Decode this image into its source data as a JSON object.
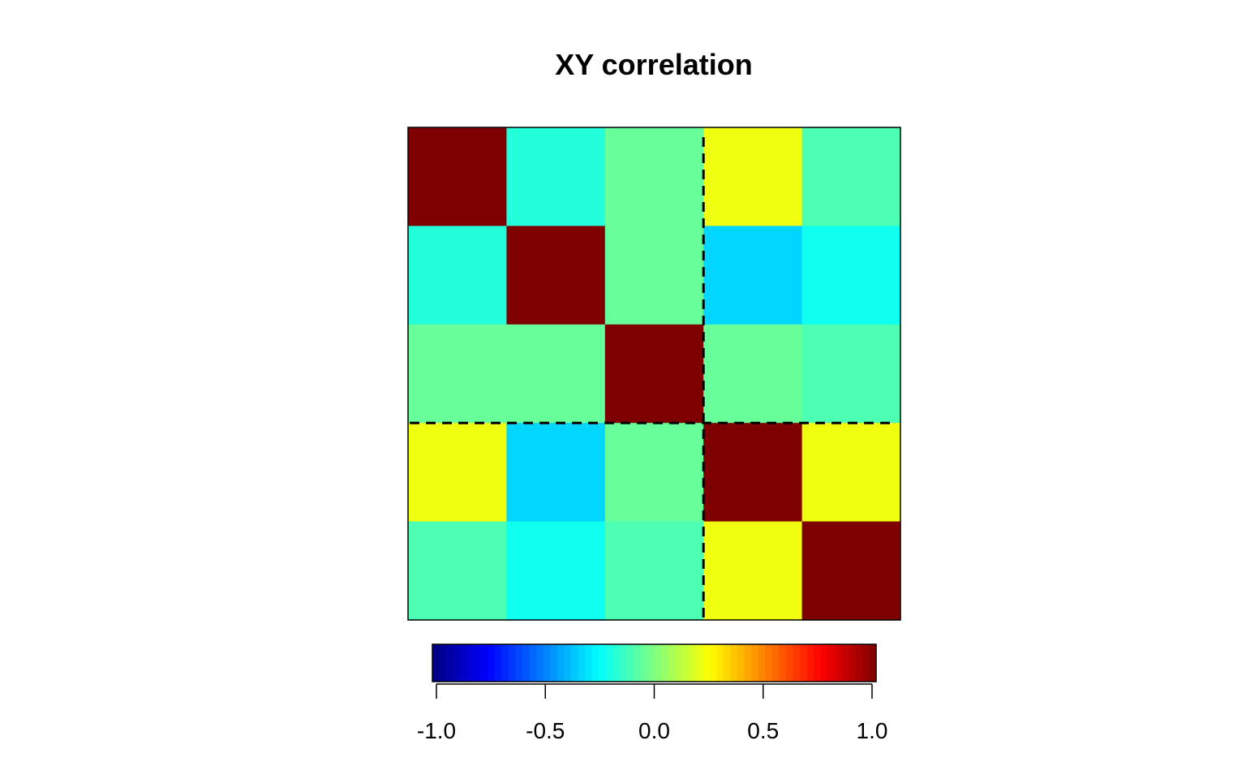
{
  "chart_data": {
    "type": "heatmap",
    "title": "XY correlation",
    "xlabel": "",
    "ylabel": "",
    "rows": 5,
    "cols": 5,
    "values": [
      [
        1.0,
        -0.18,
        -0.05,
        0.22,
        -0.1
      ],
      [
        -0.18,
        1.0,
        -0.05,
        -0.33,
        -0.22
      ],
      [
        -0.05,
        -0.05,
        1.0,
        -0.05,
        -0.1
      ],
      [
        0.22,
        -0.33,
        -0.05,
        1.0,
        0.22
      ],
      [
        -0.1,
        -0.22,
        -0.1,
        0.22,
        1.0
      ]
    ],
    "block_split": {
      "after_row": 3,
      "after_col": 3
    },
    "colorbar": {
      "colormap": "jet",
      "range": [
        -1.0,
        1.0
      ],
      "ticks": [
        -1.0,
        -0.5,
        0.0,
        0.5,
        1.0
      ],
      "tick_labels": [
        "-1.0",
        "-0.5",
        "0.0",
        "0.5",
        "1.0"
      ],
      "placement": "bottom"
    },
    "grid": false,
    "divider_style": "dashed"
  }
}
